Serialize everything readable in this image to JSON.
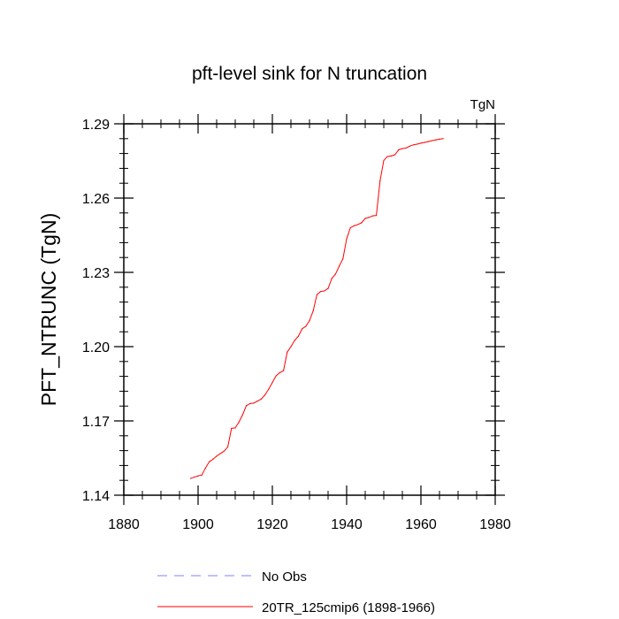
{
  "chart_data": {
    "type": "line",
    "title": "pft-level sink for N truncation",
    "units_label": "TgN",
    "xlabel": "",
    "ylabel": "PFT_NTRUNC  (TgN)",
    "xlim": [
      1880,
      1980
    ],
    "ylim": [
      1.14,
      1.29
    ],
    "x_ticks": [
      1880,
      1900,
      1920,
      1940,
      1960,
      1980
    ],
    "x_tick_labels": [
      "1880",
      "1900",
      "1920",
      "1940",
      "1960",
      "1980"
    ],
    "y_ticks": [
      1.14,
      1.17,
      1.2,
      1.23,
      1.26,
      1.29
    ],
    "y_tick_labels": [
      "1.14",
      "1.17",
      "1.20",
      "1.23",
      "1.26",
      "1.29"
    ],
    "grid": false,
    "legend_position": "bottom",
    "series": [
      {
        "name": "20TR_125cmip6 (1898-1966)",
        "color": "#ff0000",
        "style": "solid",
        "x": [
          1898,
          1899,
          1900,
          1901,
          1902,
          1903,
          1904,
          1905,
          1906,
          1907,
          1908,
          1909,
          1910,
          1911,
          1912,
          1913,
          1914,
          1915,
          1916,
          1917,
          1918,
          1919,
          1920,
          1921,
          1922,
          1923,
          1924,
          1925,
          1926,
          1927,
          1928,
          1929,
          1930,
          1931,
          1932,
          1933,
          1934,
          1935,
          1936,
          1937,
          1938,
          1939,
          1940,
          1941,
          1942,
          1943,
          1944,
          1945,
          1946,
          1947,
          1948,
          1949,
          1950,
          1951,
          1952,
          1953,
          1954,
          1955,
          1956,
          1957,
          1958,
          1959,
          1960,
          1961,
          1962,
          1963,
          1964,
          1965,
          1966
        ],
        "y": [
          1.1468,
          1.1473,
          1.1478,
          1.1481,
          1.151,
          1.1535,
          1.1545,
          1.1558,
          1.1568,
          1.1578,
          1.1595,
          1.167,
          1.1672,
          1.1695,
          1.1725,
          1.1762,
          1.177,
          1.1772,
          1.178,
          1.1788,
          1.1805,
          1.1828,
          1.1855,
          1.1882,
          1.1895,
          1.1903,
          1.1978,
          1.2,
          1.2025,
          1.2042,
          1.2072,
          1.2082,
          1.2105,
          1.2145,
          1.221,
          1.2223,
          1.2225,
          1.2235,
          1.2275,
          1.2293,
          1.2325,
          1.2355,
          1.2435,
          1.248,
          1.2488,
          1.2493,
          1.25,
          1.2518,
          1.2522,
          1.2528,
          1.253,
          1.267,
          1.2752,
          1.2768,
          1.277,
          1.2775,
          1.2795,
          1.28,
          1.2802,
          1.281,
          1.2815,
          1.2818,
          1.2822,
          1.2825,
          1.2828,
          1.2832,
          1.2835,
          1.2838,
          1.284
        ]
      }
    ],
    "legend": [
      {
        "label": "No Obs",
        "color": "#8080ff",
        "style": "dashed"
      },
      {
        "label": "20TR_125cmip6 (1898-1966)",
        "color": "#ff0000",
        "style": "solid"
      }
    ]
  }
}
